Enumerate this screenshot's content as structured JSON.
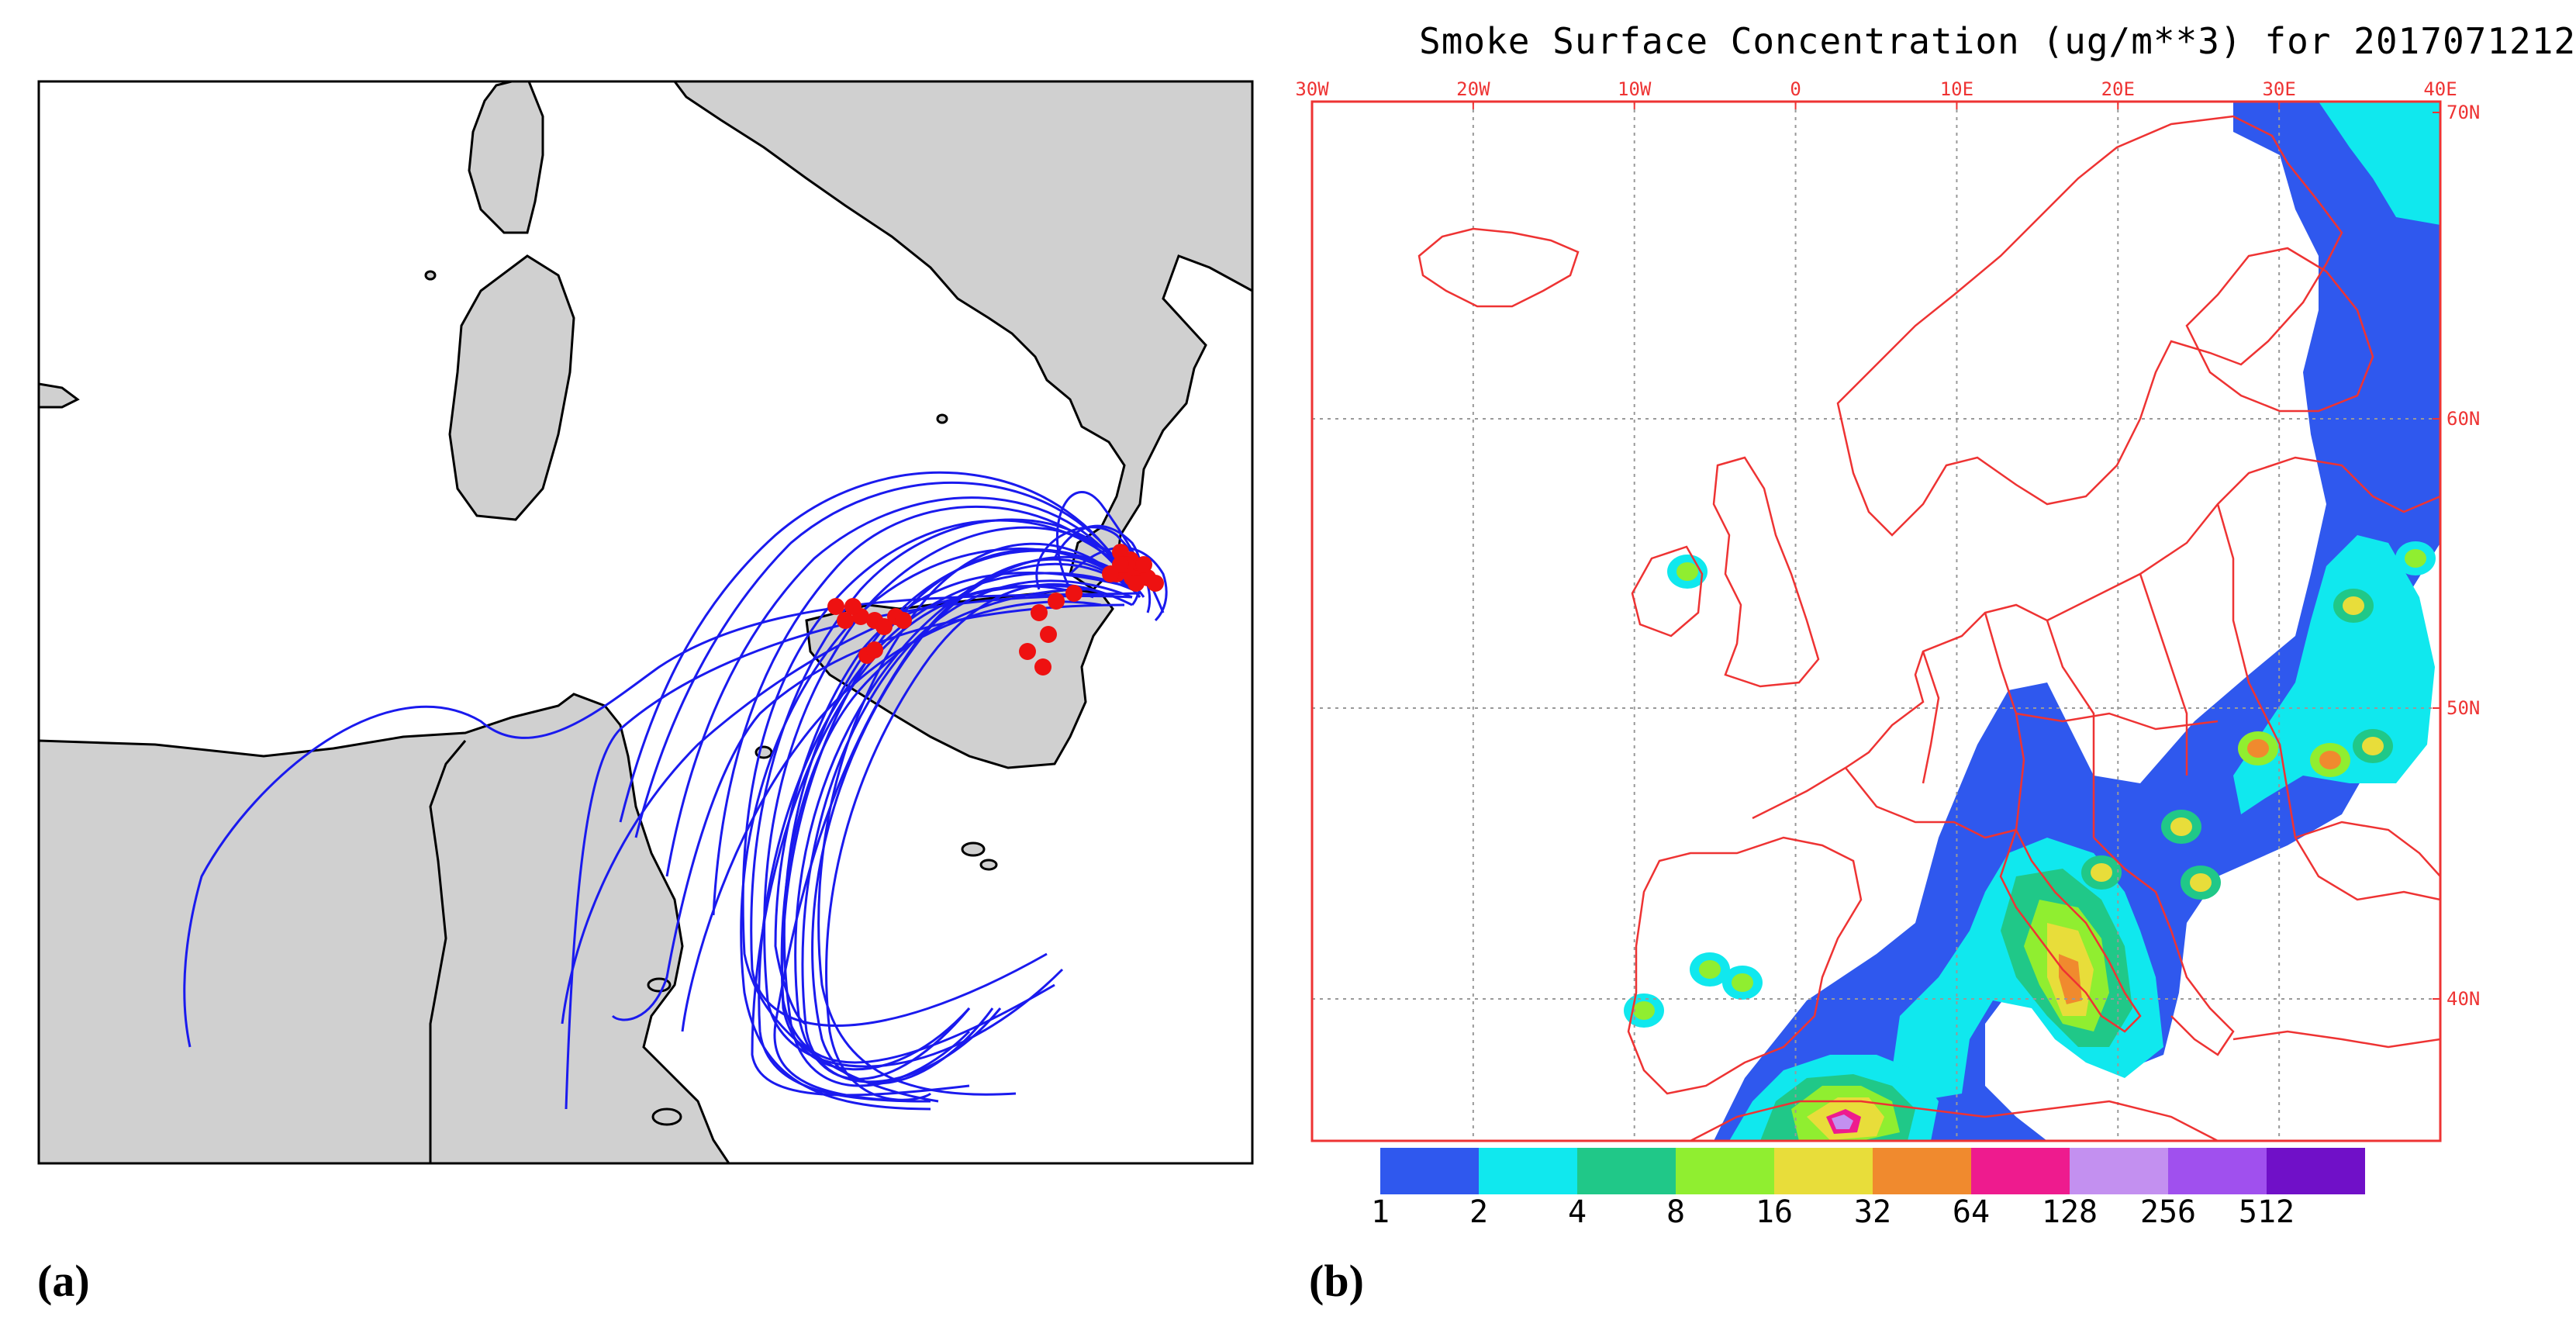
{
  "panels": {
    "a_label": "(a)",
    "b_label": "(b)"
  },
  "colors": {
    "land": "#d0d0d0",
    "coast": "#000000",
    "trajectory": "#1a1aee",
    "source_marker": "#ee1111",
    "map_frame": "#ee3333"
  },
  "chart_b": {
    "title": "Smoke Surface Concentration (ug/m**3) for 2017071212",
    "lon_ticks": [
      "30W",
      "20W",
      "10W",
      "0",
      "10E",
      "20E",
      "30E",
      "40E"
    ],
    "lat_ticks": [
      "70N",
      "60N",
      "50N",
      "40N"
    ],
    "colorbar": {
      "labels": [
        "1",
        "2",
        "4",
        "8",
        "16",
        "32",
        "64",
        "128",
        "256",
        "512"
      ],
      "colors": [
        "#2f58ee",
        "#10e8ee",
        "#20c888",
        "#90ee30",
        "#e8dd3a",
        "#f08a2e",
        "#ee1b8e",
        "#c390f0",
        "#a050ee",
        "#7010c8"
      ]
    }
  }
}
